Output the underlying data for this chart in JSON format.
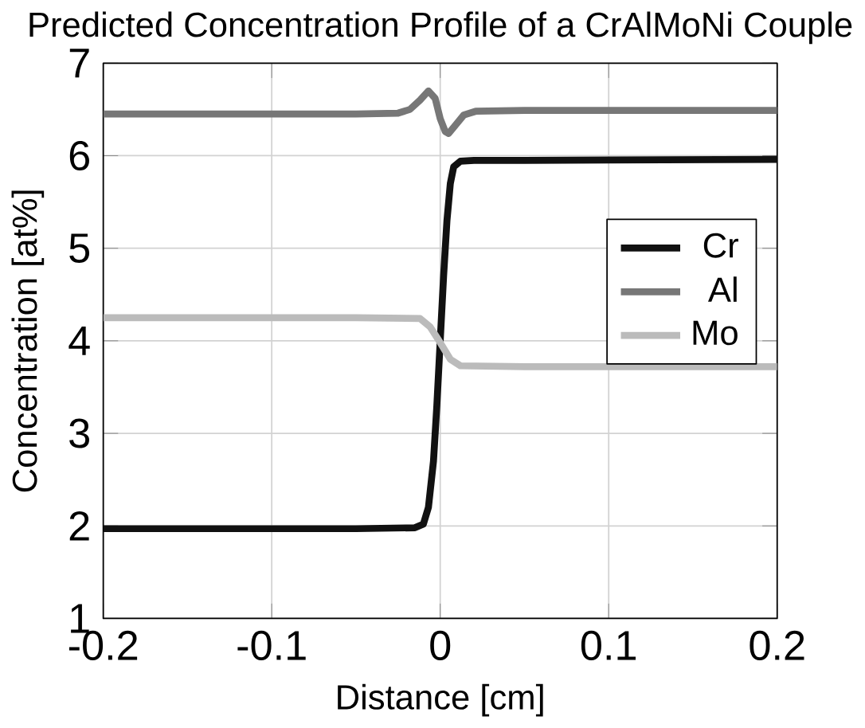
{
  "chart_data": {
    "type": "line",
    "title": "Predicted Concentration Profile of a CrAlMoNi Couple",
    "xlabel": "Distance [cm]",
    "ylabel": "Concentration [at%]",
    "series": [
      {
        "name": "Cr",
        "color": "#111111",
        "x": [
          -0.2,
          -0.05,
          -0.015,
          -0.01,
          -0.007,
          -0.004,
          -0.002,
          0,
          0.002,
          0.004,
          0.006,
          0.008,
          0.012,
          0.02,
          0.05,
          0.2
        ],
        "values": [
          1.97,
          1.97,
          1.98,
          2.02,
          2.2,
          2.7,
          3.3,
          4.0,
          4.7,
          5.3,
          5.7,
          5.88,
          5.94,
          5.95,
          5.95,
          5.96
        ]
      },
      {
        "name": "Al",
        "color": "#777777",
        "x": [
          -0.2,
          -0.05,
          -0.025,
          -0.018,
          -0.012,
          -0.007,
          -0.003,
          0,
          0.003,
          0.005,
          0.009,
          0.014,
          0.021,
          0.05,
          0.2
        ],
        "values": [
          6.45,
          6.45,
          6.46,
          6.5,
          6.6,
          6.7,
          6.62,
          6.4,
          6.26,
          6.24,
          6.33,
          6.44,
          6.48,
          6.49,
          6.49
        ]
      },
      {
        "name": "Mo",
        "color": "#bbbbbb",
        "x": [
          -0.2,
          -0.05,
          -0.012,
          -0.006,
          0,
          0.006,
          0.012,
          0.05,
          0.2
        ],
        "values": [
          4.25,
          4.25,
          4.24,
          4.15,
          3.98,
          3.8,
          3.73,
          3.72,
          3.72
        ]
      }
    ],
    "xlim": [
      -0.2,
      0.2
    ],
    "ylim": [
      1,
      7
    ],
    "xticks": [
      -0.2,
      -0.1,
      0,
      0.1,
      0.2
    ],
    "yticks": [
      1,
      2,
      3,
      4,
      5,
      6,
      7
    ],
    "grid": true,
    "legend": "right",
    "marker": "none",
    "line_style": "solid"
  }
}
